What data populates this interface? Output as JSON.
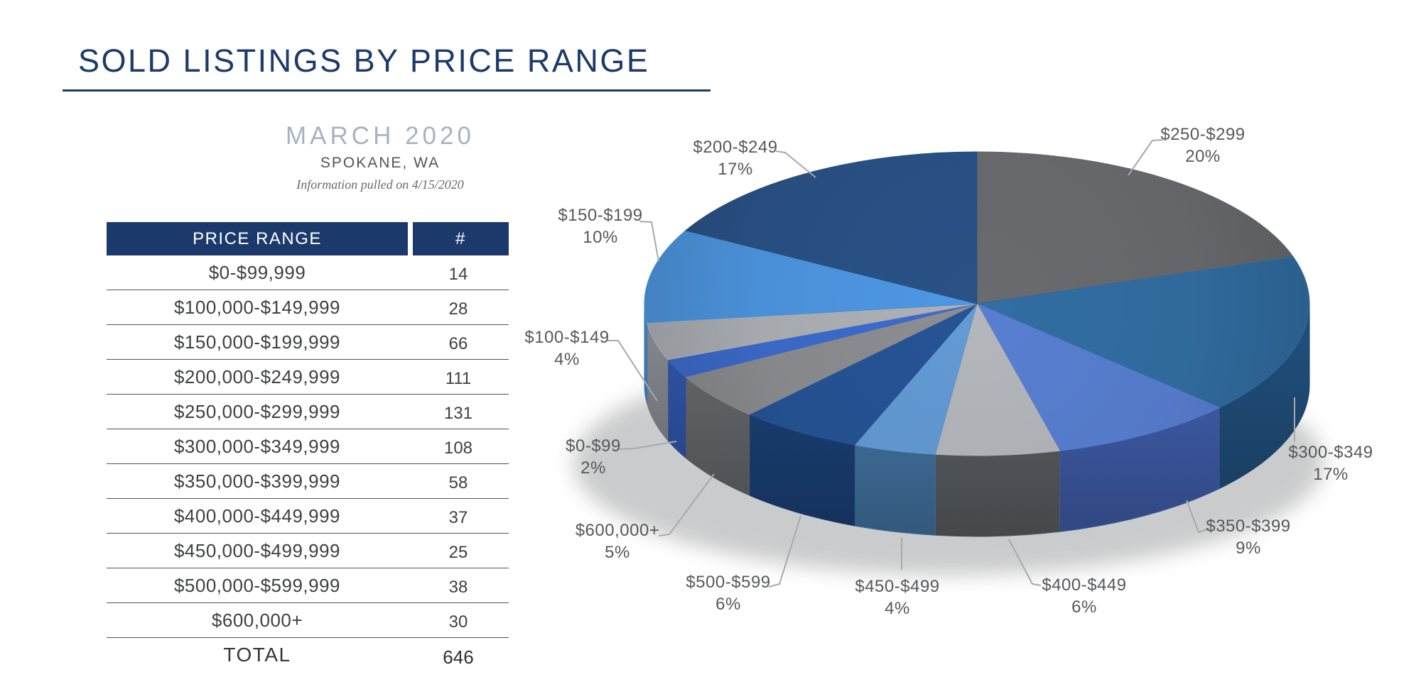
{
  "page": {
    "title": "SOLD LISTINGS BY PRICE RANGE",
    "subtitle": "MARCH 2020",
    "location": "SPOKANE, WA",
    "note": "Information pulled on 4/15/2020"
  },
  "colors": {
    "navy": "#1b3a6b",
    "title_navy": "#1c3a6a",
    "subtitle_blue_gray": "#a7b3c2",
    "table_text": "#3f4041",
    "divider": "#4f5153",
    "label_text": "#57585a",
    "leader_line": "#a8a9ab"
  },
  "table": {
    "headers": [
      "PRICE RANGE",
      "#"
    ],
    "rows": [
      [
        "$0-$99,999",
        "14"
      ],
      [
        "$100,000-$149,999",
        "28"
      ],
      [
        "$150,000-$199,999",
        "66"
      ],
      [
        "$200,000-$249,999",
        "111"
      ],
      [
        "$250,000-$299,999",
        "131"
      ],
      [
        "$300,000-$349,999",
        "108"
      ],
      [
        "$350,000-$399,999",
        "58"
      ],
      [
        "$400,000-$449,999",
        "37"
      ],
      [
        "$450,000-$499,999",
        "25"
      ],
      [
        "$500,000-$599,999",
        "38"
      ],
      [
        "$600,000+",
        "30"
      ]
    ],
    "total_label": "TOTAL",
    "total_value": "646"
  },
  "chart_data": {
    "type": "pie",
    "style": "3d",
    "start_angle_deg": 0,
    "direction": "clockwise",
    "legend_position": "none",
    "slices": [
      {
        "label": "$250-$299",
        "pct": 20,
        "count": 131,
        "color": "#646669",
        "wall": "#4c4e51"
      },
      {
        "label": "$300-$349",
        "pct": 17,
        "count": 108,
        "color": "#30699c",
        "wall": "#1e4a74"
      },
      {
        "label": "$350-$399",
        "pct": 9,
        "count": 58,
        "color": "#5479c8",
        "wall": "#3d5ba6"
      },
      {
        "label": "$400-$449",
        "pct": 6,
        "count": 37,
        "color": "#abaeb3",
        "wall": "#595c60"
      },
      {
        "label": "$450-$499",
        "pct": 4,
        "count": 25,
        "color": "#5f94cb",
        "wall": "#41729f"
      },
      {
        "label": "$500-$599",
        "pct": 6,
        "count": 38,
        "color": "#24508f",
        "wall": "#193f73"
      },
      {
        "label": "$600,000+",
        "pct": 5,
        "count": 30,
        "color": "#85878a",
        "wall": "#606265"
      },
      {
        "label": "$0-$99",
        "pct": 2,
        "count": 14,
        "color": "#3a67c4",
        "wall": "#2b4f9e"
      },
      {
        "label": "$100-$149",
        "pct": 4,
        "count": 28,
        "color": "#a6a9ad",
        "wall": "#7b7e82"
      },
      {
        "label": "$150-$199",
        "pct": 10,
        "count": 66,
        "color": "#4a90d8",
        "wall": "#3a78b6"
      },
      {
        "label": "$200-$249",
        "pct": 17,
        "count": 111,
        "color": "#284e80",
        "wall": "#1d3a61"
      }
    ]
  }
}
